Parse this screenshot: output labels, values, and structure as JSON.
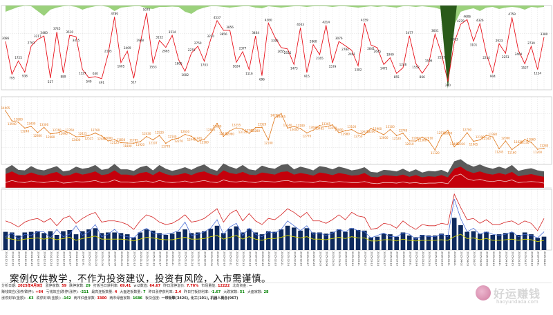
{
  "disclaimer": "案例仅供教学，不作为投资建议，投资有风险，入市需谨慎。",
  "watermark": {
    "cn": "好运赚钱",
    "url": "haoyundada.com"
  },
  "colors": {
    "red": "#e8111a",
    "green_fill": "#9bd17c",
    "dark_green": "#2a5a1a",
    "orange": "#e07a1e",
    "grid": "#cfcfcf",
    "navy": "#0e2a5e",
    "dark_fill": "#c4000b",
    "gray_fill": "#5a5a5a",
    "blue": "#4a6fd8",
    "yellow": "#d6d600",
    "pink_line": "#d42020"
  },
  "stats": [
    [
      {
        "label": "分析日期:",
        "value": "2025年4月9日",
        "color": "#d00000"
      },
      {
        "label": "涨停家数:",
        "value": "59",
        "color": "#d00000"
      },
      {
        "label": "跌停家数:",
        "value": "29",
        "color": "#008000"
      },
      {
        "label": "打板当日获利率:",
        "value": "69.41",
        "color": "#d00000"
      },
      {
        "label": "wr2数值:",
        "value": "64.67",
        "color": "#d00000"
      },
      {
        "label": "昨日涨停溢价:",
        "value": "7.76%",
        "color": "#d00000"
      },
      {
        "label": "市场量能:",
        "value": "12222",
        "color": "#d00000"
      },
      {
        "label": "北向资金:",
        "value": "—",
        "color": "#333"
      }
    ],
    [
      {
        "label": "赚钱效应(涨停/跌停):",
        "value": "+64",
        "color": "#d00000"
      },
      {
        "label": "亏钱效应(跌停/涨停):",
        "value": "-211",
        "color": "#008000"
      },
      {
        "label": "最高连板数量:",
        "value": "4",
        "color": "#d00000"
      },
      {
        "label": "大面连板数量:",
        "value": "7",
        "color": "#008000"
      },
      {
        "label": "昨日涨停获利率:",
        "value": "2.4",
        "color": "#d00000"
      },
      {
        "label": "昨日打板获利率:",
        "value": "-1.67",
        "color": "#008000"
      },
      {
        "label": "大跌家数:",
        "value": "51",
        "color": "#008000"
      },
      {
        "label": "大面家数:",
        "value": "28",
        "color": "#008000"
      }
    ],
    [
      {
        "label": "涨停封单(金额):",
        "value": "-63",
        "color": "#008000"
      },
      {
        "label": "跌停封单(金额):",
        "value": "-142",
        "color": "#008000"
      },
      {
        "label": "两市红盘家数:",
        "value": "3300",
        "color": "#d00000"
      },
      {
        "label": "两市绿盘家数:",
        "value": "1686",
        "color": "#008000"
      },
      {
        "label": "板块强度:",
        "value": "一带街擎(3426), 化工(101), 机器人概念(967)",
        "color": "#333"
      }
    ]
  ],
  "chart_data": [
    {
      "type": "line",
      "name": "panel-1",
      "series": [
        {
          "values": [
            3086,
            795,
            1725,
            938,
            2761,
            3217,
            3460,
            527,
            3745,
            889,
            3510,
            3415,
            1127,
            549,
            630,
            491,
            2185,
            4789,
            1605,
            2409,
            517,
            2948,
            5070,
            1553,
            3152,
            2665,
            3514,
            1805,
            1002,
            2275,
            2750,
            1703,
            3220,
            4537,
            3856,
            3856,
            1624,
            2377,
            1116,
            3464,
            696,
            4360,
            3395,
            2655,
            2555,
            1473,
            4043,
            915,
            2860,
            2165,
            4214,
            1579,
            3076,
            2784,
            2461,
            1382,
            4359,
            2841,
            2645,
            1475,
            1949,
            855,
            1246,
            3477,
            1552,
            866,
            1506,
            3601,
            2233,
            280,
            3003,
            4278,
            4606,
            3101,
            4326,
            2214,
            904,
            2923,
            2251,
            4759,
            2464,
            1527,
            2739,
            1124,
            3380
          ]
        }
      ],
      "area_top": [
        0.9,
        0.55,
        0.2,
        0.05,
        0.1,
        0.8,
        1.5,
        0.6,
        0.3,
        0.1,
        0.05,
        0.2,
        0.6,
        0.3,
        0.1,
        0.05,
        0.2,
        0.8,
        0.3,
        0.2,
        0.1,
        0.1,
        0.4,
        0.5,
        0.2,
        0.2,
        0.15,
        0.2,
        0.9,
        1.2,
        0.6,
        0.3,
        0.1,
        0.1,
        0.2,
        0.3,
        0.2,
        0.1,
        0.1,
        0.3,
        0.4,
        0.1,
        0.2,
        0.3,
        0.2,
        0.1,
        0.1,
        0.2,
        0.1,
        0.1,
        0.1,
        0.2,
        0.1,
        0.1,
        0.2,
        0.3,
        0.2,
        0.1,
        0.2,
        0.1,
        0.2,
        0.3,
        0.1,
        0.1,
        0.2,
        0.1,
        0.2,
        0.3,
        0.6,
        4.5,
        2.8,
        0.9,
        0.6,
        0.4,
        0.8,
        0.3,
        0.2,
        0.5,
        0.3,
        0.2,
        0.3,
        0.6,
        0.2,
        0.3,
        0.2
      ],
      "ylim": [
        0,
        5200
      ]
    },
    {
      "type": "line",
      "name": "panel-2",
      "series": [
        {
          "values": [
            14905,
            13940,
            13800,
            13240,
            13400,
            12800,
            13306,
            12680,
            12760,
            12995,
            12760,
            12400,
            12425,
            12525,
            12760,
            12485,
            12000,
            12125,
            11830,
            11800,
            11785,
            11920,
            12430,
            12107,
            12520,
            11770,
            12140,
            12270,
            12630,
            12445,
            11965,
            12160,
            12800,
            13690,
            12445,
            12980,
            13255,
            13135,
            12740,
            13280,
            13320,
            12100,
            14205,
            14645,
            13240,
            13400,
            13190,
            12770,
            13040,
            13485,
            13365,
            13550,
            12800,
            12980,
            13100,
            12750,
            12610,
            13200,
            12900,
            12600,
            13100,
            12520,
            12740,
            12010,
            11990,
            12360,
            12010,
            11120,
            12510,
            13030,
            11440,
            12010,
            12790,
            11965,
            12100,
            12540,
            12380,
            11245,
            12000,
            11160,
            11620,
            12130,
            11860,
            11200,
            11280
          ]
        }
      ],
      "ylim": [
        10000,
        16000
      ]
    },
    {
      "type": "area",
      "name": "panel-3",
      "series": [
        {
          "values": [
            0.52,
            0.62,
            0.5,
            0.48,
            0.58,
            0.5,
            0.46,
            0.54,
            0.6,
            0.45,
            0.48,
            0.58,
            0.5,
            0.55,
            0.62,
            0.48,
            0.52,
            0.66,
            0.5,
            0.5,
            0.46,
            0.56,
            0.6,
            0.48,
            0.62,
            0.52,
            0.46,
            0.5,
            0.56,
            0.48,
            0.58,
            0.62,
            0.52,
            0.46,
            0.66,
            0.56,
            0.52,
            0.6,
            0.5,
            0.48,
            0.58,
            0.54,
            0.5,
            0.6,
            0.62,
            0.5,
            0.56,
            0.52,
            0.46,
            0.58,
            0.54,
            0.48,
            0.56,
            0.52,
            0.46,
            0.48,
            0.56,
            0.42,
            0.4,
            0.48,
            0.46,
            0.44,
            0.5,
            0.42,
            0.48,
            0.4,
            0.44,
            0.42,
            0.48,
            0.4,
            0.72,
            0.8,
            0.64,
            0.56,
            0.62,
            0.54,
            0.5,
            0.56,
            0.5,
            0.6,
            0.44,
            0.48,
            0.52,
            0.46,
            0.42
          ]
        },
        {
          "values": [
            0.72,
            0.86,
            0.68,
            0.66,
            0.82,
            0.7,
            0.66,
            0.74,
            0.82,
            0.62,
            0.66,
            0.8,
            0.72,
            0.76,
            0.86,
            0.68,
            0.72,
            0.9,
            0.7,
            0.7,
            0.64,
            0.78,
            0.84,
            0.66,
            0.86,
            0.72,
            0.64,
            0.7,
            0.78,
            0.68,
            0.8,
            0.88,
            0.72,
            0.64,
            0.92,
            0.8,
            0.72,
            0.86,
            0.7,
            0.66,
            0.84,
            0.76,
            0.72,
            0.86,
            0.9,
            0.7,
            0.8,
            0.74,
            0.66,
            0.82,
            0.78,
            0.7,
            0.8,
            0.74,
            0.66,
            0.7,
            0.78,
            0.6,
            0.58,
            0.68,
            0.66,
            0.62,
            0.72,
            0.6,
            0.7,
            0.58,
            0.64,
            0.62,
            0.68,
            0.58,
            1.0,
            1.08,
            0.9,
            0.8,
            0.88,
            0.78,
            0.72,
            0.8,
            0.72,
            0.86,
            0.64,
            0.7,
            0.74,
            0.66,
            0.62
          ]
        },
        {
          "values": [
            0.2,
            0.28,
            0.22,
            0.2,
            0.26,
            0.22,
            0.2,
            0.24,
            0.26,
            0.18,
            0.2,
            0.24,
            0.22,
            0.24,
            0.28,
            0.2,
            0.22,
            0.3,
            0.22,
            0.22,
            0.2,
            0.24,
            0.26,
            0.2,
            0.28,
            0.22,
            0.2,
            0.22,
            0.26,
            0.2,
            0.24,
            0.28,
            0.22,
            0.2,
            0.3,
            0.24,
            0.22,
            0.26,
            0.22,
            0.2,
            0.26,
            0.24,
            0.22,
            0.26,
            0.28,
            0.22,
            0.24,
            0.22,
            0.2,
            0.26,
            0.24,
            0.2,
            0.24,
            0.22,
            0.2,
            0.2,
            0.24,
            0.18,
            0.16,
            0.2,
            0.2,
            0.18,
            0.22,
            0.18,
            0.2,
            0.16,
            0.18,
            0.18,
            0.2,
            0.16,
            0.44,
            0.52,
            0.34,
            0.28,
            0.32,
            0.26,
            0.24,
            0.28,
            0.24,
            0.3,
            0.2,
            0.22,
            0.24,
            0.22,
            0.18
          ]
        }
      ],
      "ylim": [
        0,
        1.3
      ]
    },
    {
      "type": "bar",
      "name": "panel-4",
      "categories": [
        "2024-12-13",
        "2024-12-16",
        "2024-12-17",
        "2024-12-18",
        "2024-12-19",
        "2024-12-20",
        "2024-12-23",
        "2024-12-24",
        "2024-12-25",
        "2024-12-26",
        "2024-12-27",
        "2024-12-30",
        "2024-12-31",
        "2025-01-02",
        "2025-01-03",
        "2025-01-06",
        "2025-01-07",
        "2025-01-08",
        "2025-01-09",
        "2025-01-10",
        "2025-01-13",
        "2025-01-14",
        "2025-01-15",
        "2025-01-16",
        "2025-01-17",
        "2025-01-20",
        "2025-01-21",
        "2025-01-22",
        "2025-01-23",
        "2025-01-24",
        "2025-01-27",
        "2025-02-05",
        "2025-02-06",
        "2025-02-07",
        "2025-02-10",
        "2025-02-11",
        "2025-02-12",
        "2025-02-13",
        "2025-02-14",
        "2025-02-17",
        "2025-02-18",
        "2025-02-19",
        "2025-02-20",
        "2025-02-21",
        "2025-02-24",
        "2025-02-25",
        "2025-02-26",
        "2025-02-27",
        "2025-02-28",
        "2025-03-03",
        "2025-03-04",
        "2025-03-05",
        "2025-03-06",
        "2025-03-07",
        "2025-03-10",
        "2025-03-11",
        "2025-03-12",
        "2025-03-13",
        "2025-03-14",
        "2025-03-17",
        "2025-03-18",
        "2025-03-19",
        "2025-03-20",
        "2025-03-21",
        "2025-03-24",
        "2025-03-25",
        "2025-03-26",
        "2025-03-27",
        "2025-03-28",
        "2025-03-31",
        "2025-04-01",
        "2025-04-02",
        "2025-04-03",
        "2025-04-07",
        "2025-04-08",
        "2025-04-09",
        "2025-04-10",
        "2025-04-11",
        "2025-04-14",
        "2025-04-15",
        "2025-04-16",
        "2025-04-17",
        "2025-04-18",
        "2025-04-21",
        "2025-04-22"
      ],
      "values": [
        30,
        29,
        24,
        29,
        30,
        31,
        28,
        31,
        25,
        31,
        33,
        26,
        31,
        34,
        36,
        28,
        29,
        29,
        28,
        26,
        21,
        29,
        34,
        32,
        28,
        25,
        27,
        30,
        34,
        28,
        29,
        31,
        35,
        40,
        28,
        35,
        39,
        29,
        35,
        29,
        26,
        31,
        30,
        34,
        40,
        37,
        32,
        36,
        29,
        29,
        27,
        30,
        34,
        30,
        36,
        33,
        32,
        21,
        22,
        27,
        26,
        22,
        29,
        24,
        21,
        25,
        24,
        24,
        27,
        25,
        53,
        41,
        30,
        31,
        27,
        30,
        25,
        26,
        28,
        29,
        25,
        29,
        26,
        20,
        22
      ],
      "series": [
        {
          "values": [
            48,
            44,
            38,
            46,
            50,
            52,
            46,
            52,
            40,
            52,
            56,
            44,
            52,
            58,
            62,
            46,
            48,
            48,
            46,
            42,
            34,
            48,
            58,
            54,
            46,
            42,
            44,
            50,
            58,
            46,
            48,
            52,
            60,
            68,
            46,
            60,
            66,
            48,
            60,
            48,
            42,
            52,
            50,
            58,
            68,
            62,
            54,
            62,
            48,
            48,
            44,
            50,
            58,
            50,
            62,
            56,
            54,
            34,
            36,
            44,
            42,
            36,
            48,
            40,
            34,
            42,
            40,
            40,
            44,
            42,
            92,
            70,
            50,
            52,
            44,
            50,
            42,
            42,
            46,
            48,
            42,
            48,
            44,
            32,
            52
          ]
        },
        {
          "values": [
            22,
            28,
            18,
            26,
            24,
            30,
            30,
            20,
            34,
            22,
            26,
            40,
            24,
            30,
            42,
            22,
            26,
            34,
            24,
            22,
            20,
            30,
            36,
            28,
            26,
            26,
            28,
            32,
            46,
            24,
            26,
            30,
            36,
            50,
            26,
            38,
            44,
            24,
            36,
            26,
            22,
            30,
            28,
            34,
            48,
            40,
            32,
            40,
            26,
            28,
            24,
            28,
            34,
            30,
            36,
            32,
            30,
            20,
            24,
            28,
            22,
            22,
            28,
            26,
            18,
            24,
            22,
            22,
            26,
            22,
            84,
            52,
            30,
            36,
            26,
            30,
            26,
            24,
            26,
            30,
            22,
            26,
            24,
            20,
            30
          ]
        },
        {
          "values": [
            20,
            18,
            16,
            18,
            19,
            20,
            18,
            20,
            17,
            19,
            21,
            16,
            19,
            21,
            23,
            18,
            18,
            18,
            18,
            17,
            15,
            18,
            21,
            20,
            18,
            17,
            17,
            19,
            21,
            18,
            18,
            19,
            22,
            24,
            18,
            21,
            24,
            18,
            22,
            18,
            16,
            19,
            19,
            21,
            24,
            22,
            20,
            22,
            18,
            18,
            17,
            19,
            21,
            19,
            22,
            20,
            20,
            15,
            15,
            17,
            17,
            15,
            18,
            16,
            15,
            16,
            16,
            16,
            17,
            16,
            22,
            26,
            19,
            20,
            17,
            19,
            16,
            16,
            17,
            18,
            16,
            18,
            17,
            14,
            16
          ]
        }
      ],
      "ylim": [
        0,
        100
      ]
    }
  ]
}
